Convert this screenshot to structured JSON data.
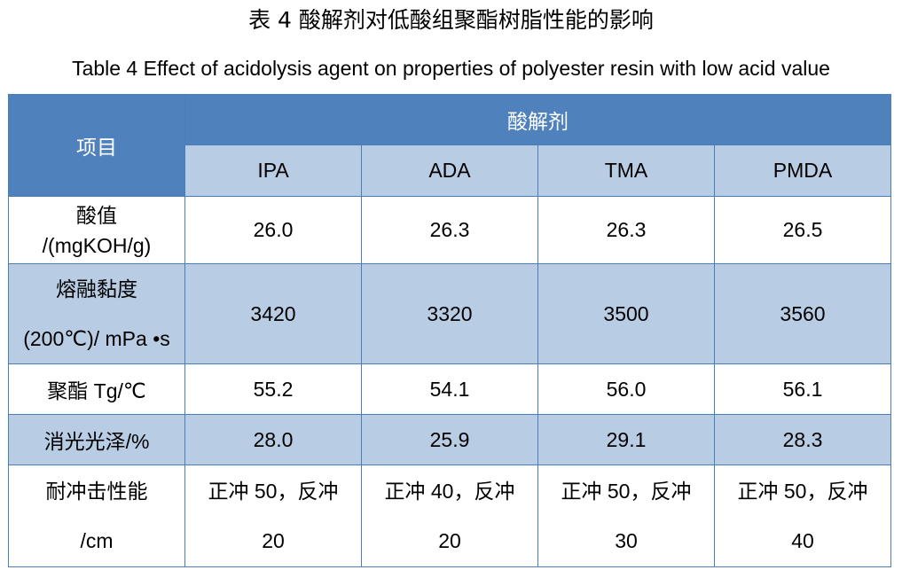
{
  "title_cn": "表 4  酸解剂对低酸组聚酯树脂性能的影响",
  "title_en": "Table 4 Effect of acidolysis agent on properties of polyester resin with low acid value",
  "header": {
    "item_label": "项目",
    "group_label": "酸解剂",
    "columns": [
      "IPA",
      "ADA",
      "TMA",
      "PMDA"
    ]
  },
  "rows": [
    {
      "label_line1": "酸值",
      "label_line2": "/(mgKOH/g)",
      "values": [
        "26.0",
        "26.3",
        "26.3",
        "26.5"
      ]
    },
    {
      "label_line1": "熔融黏度",
      "label_line2": "(200℃)/ mPa •s",
      "values": [
        "3420",
        "3320",
        "3500",
        "3560"
      ]
    },
    {
      "label_line1": "聚酯 Tg/℃",
      "values": [
        "55.2",
        "54.1",
        "56.0",
        "56.1"
      ]
    },
    {
      "label_line1": "消光光泽/%",
      "values": [
        "28.0",
        "25.9",
        "29.1",
        "28.3"
      ]
    },
    {
      "label_line1": "耐冲击性能",
      "label_line2": "/cm",
      "values": [
        {
          "line1": "正冲 50，反冲",
          "line2": "20"
        },
        {
          "line1": "正冲 40，反冲",
          "line2": "20"
        },
        {
          "line1": "正冲 50，反冲",
          "line2": "30"
        },
        {
          "line1": "正冲 50，反冲",
          "line2": "40"
        }
      ]
    }
  ],
  "colors": {
    "header_dark": "#4f81bd",
    "header_light": "#b8cce4",
    "band": "#b8cce4",
    "border": "#4a7ebb"
  }
}
